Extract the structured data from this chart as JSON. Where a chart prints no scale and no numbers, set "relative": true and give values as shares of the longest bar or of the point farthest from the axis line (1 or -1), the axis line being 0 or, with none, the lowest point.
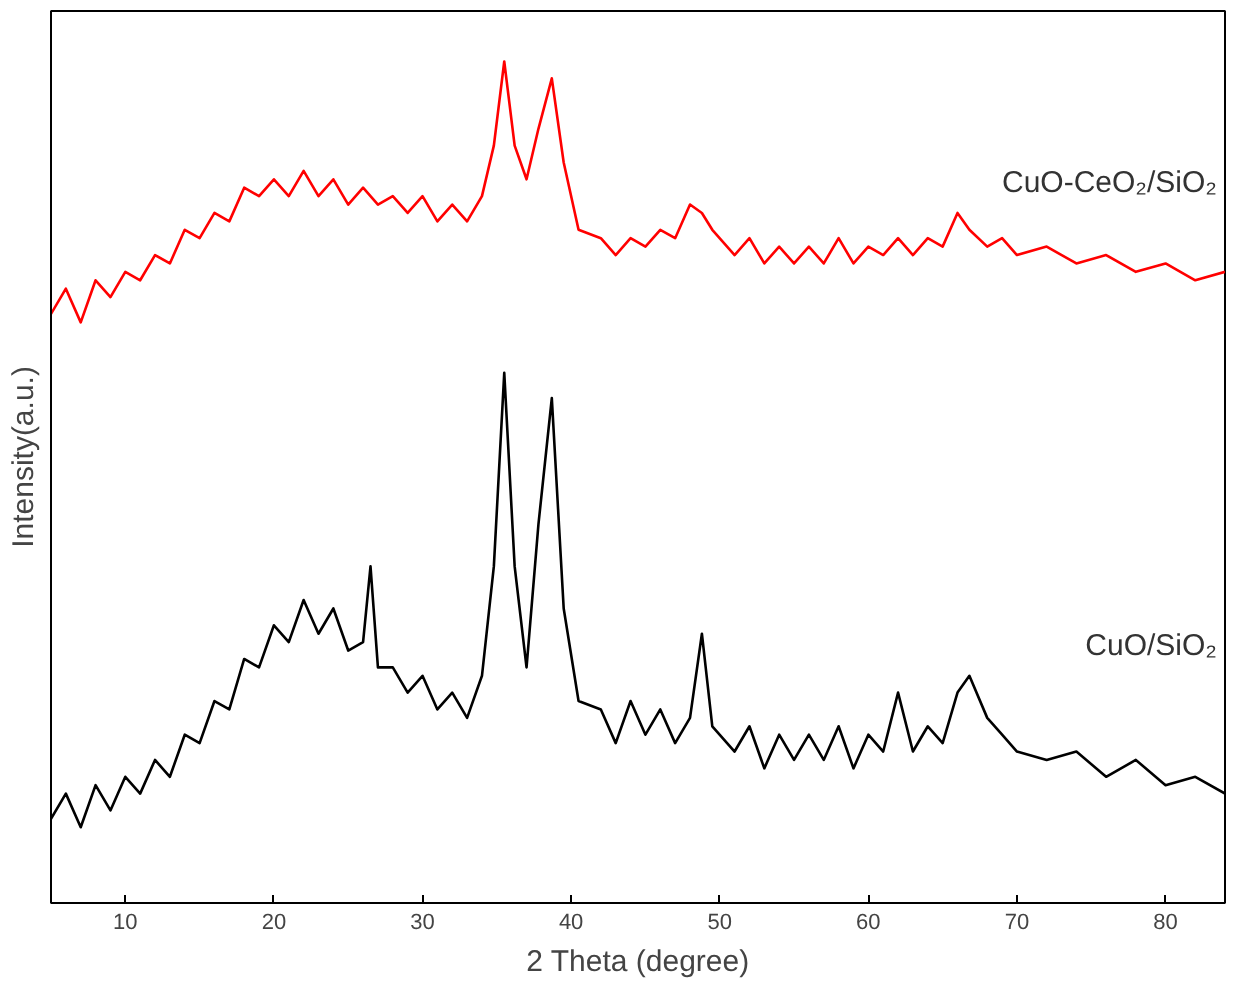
{
  "chart_data": {
    "type": "line",
    "xlabel": "2 Theta (degree)",
    "ylabel": "Intensity(a.u.)",
    "relative": true,
    "grid": false,
    "marker": "none",
    "line_style": "solid",
    "xlim": [
      5,
      84
    ],
    "xticks": [
      10,
      20,
      30,
      40,
      50,
      60,
      70,
      80
    ],
    "x": [
      5,
      6,
      7,
      8,
      9,
      10,
      11,
      12,
      13,
      14,
      15,
      16,
      17,
      18,
      19,
      20,
      21,
      22,
      23,
      24,
      25,
      26,
      26.5,
      27,
      28,
      29,
      30,
      31,
      32,
      33,
      34,
      34.8,
      35.5,
      36.2,
      37,
      37.8,
      38.7,
      39.5,
      40.5,
      42,
      43,
      44,
      45,
      46,
      47,
      48,
      48.8,
      49.5,
      51,
      52,
      53,
      54,
      55,
      56,
      57,
      58,
      59,
      60,
      61,
      62,
      63,
      64,
      65,
      66,
      66.8,
      68,
      69,
      70,
      72,
      74,
      76,
      78,
      80,
      82,
      84
    ],
    "series": [
      {
        "name": "CuO-CeO₂/SiO₂",
        "color": "#ff0000",
        "values": [
          0.7,
          0.73,
          0.69,
          0.74,
          0.72,
          0.75,
          0.74,
          0.77,
          0.76,
          0.8,
          0.79,
          0.82,
          0.81,
          0.85,
          0.84,
          0.86,
          0.84,
          0.87,
          0.84,
          0.86,
          0.83,
          0.85,
          0.84,
          0.83,
          0.84,
          0.82,
          0.84,
          0.81,
          0.83,
          0.81,
          0.84,
          0.9,
          1.0,
          0.9,
          0.86,
          0.92,
          0.98,
          0.88,
          0.8,
          0.79,
          0.77,
          0.79,
          0.78,
          0.8,
          0.79,
          0.83,
          0.82,
          0.8,
          0.77,
          0.79,
          0.76,
          0.78,
          0.76,
          0.78,
          0.76,
          0.79,
          0.76,
          0.78,
          0.77,
          0.79,
          0.77,
          0.79,
          0.78,
          0.82,
          0.8,
          0.78,
          0.79,
          0.77,
          0.78,
          0.76,
          0.77,
          0.75,
          0.76,
          0.74,
          0.75
        ]
      },
      {
        "name": "CuO/SiO₂",
        "color": "#000000",
        "values": [
          0.1,
          0.13,
          0.09,
          0.14,
          0.11,
          0.15,
          0.13,
          0.17,
          0.15,
          0.2,
          0.19,
          0.24,
          0.23,
          0.29,
          0.28,
          0.33,
          0.31,
          0.36,
          0.32,
          0.35,
          0.3,
          0.31,
          0.4,
          0.28,
          0.28,
          0.25,
          0.27,
          0.23,
          0.25,
          0.22,
          0.27,
          0.4,
          0.63,
          0.4,
          0.28,
          0.45,
          0.6,
          0.35,
          0.24,
          0.23,
          0.19,
          0.24,
          0.2,
          0.23,
          0.19,
          0.22,
          0.32,
          0.21,
          0.18,
          0.21,
          0.16,
          0.2,
          0.17,
          0.2,
          0.17,
          0.21,
          0.16,
          0.2,
          0.18,
          0.25,
          0.18,
          0.21,
          0.19,
          0.25,
          0.27,
          0.22,
          0.2,
          0.18,
          0.17,
          0.18,
          0.15,
          0.17,
          0.14,
          0.15,
          0.13
        ]
      }
    ]
  }
}
